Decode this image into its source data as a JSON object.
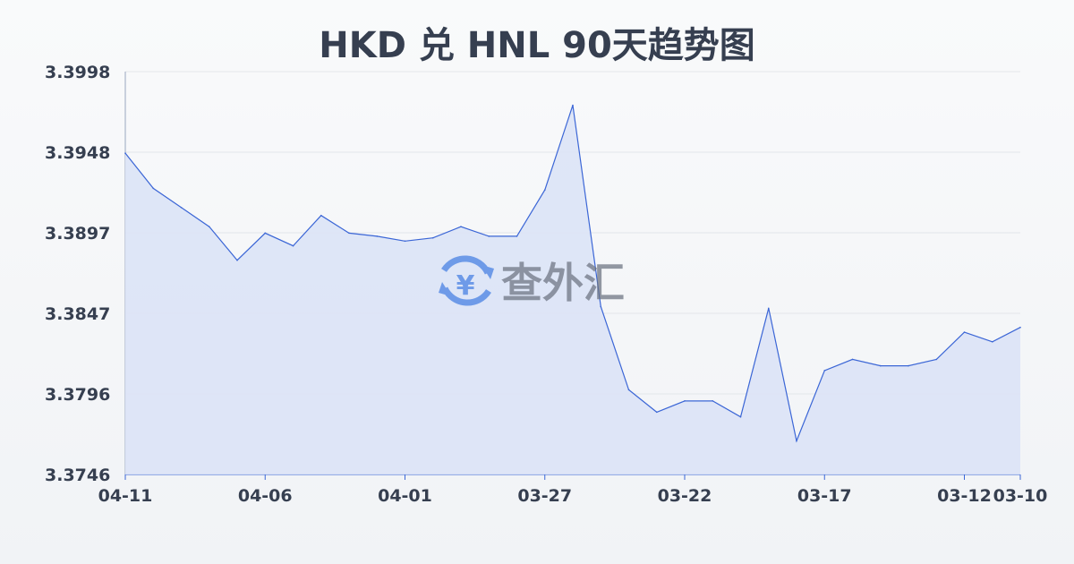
{
  "chart_data": {
    "type": "area",
    "title": "HKD 兑 HNL 90天趋势图",
    "xlabel": "",
    "ylabel": "",
    "ylim": [
      3.3746,
      3.3998
    ],
    "yticks": [
      "3.3998",
      "3.3948",
      "3.3897",
      "3.3847",
      "3.3796",
      "3.3746"
    ],
    "xticks": [
      "04-11",
      "04-06",
      "04-01",
      "03-27",
      "03-22",
      "03-17",
      "03-12",
      "03-10"
    ],
    "x": [
      "04-11",
      "04-10",
      "04-09",
      "04-08",
      "04-07",
      "04-06",
      "04-05",
      "04-04",
      "04-03",
      "04-02",
      "04-01",
      "03-31",
      "03-30",
      "03-29",
      "03-28",
      "03-27",
      "03-26",
      "03-25",
      "03-24",
      "03-23",
      "03-22",
      "03-21",
      "03-20",
      "03-19",
      "03-18",
      "03-17",
      "03-16",
      "03-15",
      "03-14",
      "03-13",
      "03-12",
      "03-11",
      "03-10"
    ],
    "values": [
      3.3947,
      3.3925,
      3.3913,
      3.3901,
      3.388,
      3.3897,
      3.3889,
      3.3908,
      3.3897,
      3.3895,
      3.3892,
      3.3894,
      3.3901,
      3.3895,
      3.3895,
      3.3924,
      3.3977,
      3.3851,
      3.3799,
      3.3785,
      3.3792,
      3.3792,
      3.3782,
      3.385,
      3.3767,
      3.3811,
      3.3818,
      3.3814,
      3.3814,
      3.3818,
      3.3835,
      3.3829,
      3.3838
    ],
    "grid": true,
    "colors": {
      "line": "#3b66d6",
      "fill": "#dbe3f6",
      "grid": "#e3e6ea"
    }
  },
  "watermark": {
    "text": "查外汇",
    "icon": "yen-exchange-icon",
    "color": "#5b8ee6"
  }
}
